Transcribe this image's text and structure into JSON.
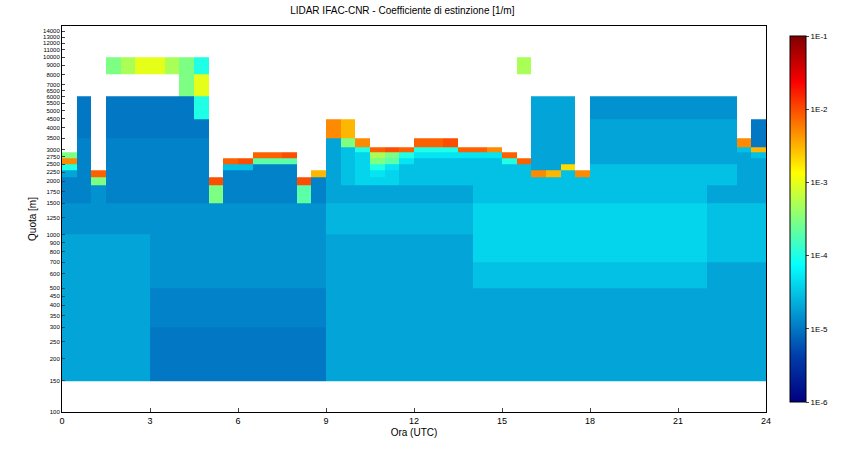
{
  "chart_data": {
    "type": "heatmap",
    "title": "LIDAR IFAC-CNR - Coefficiente di estinzione [1/m]",
    "x_label": "Ora (UTC)",
    "y_label": "Quota [m]",
    "x": [
      0,
      0.5,
      1,
      1.5,
      2,
      2.5,
      3,
      3.5,
      4,
      4.5,
      5,
      5.5,
      6,
      6.5,
      7,
      7.5,
      8,
      8.5,
      9,
      9.5,
      10,
      10.5,
      11,
      11.5,
      12,
      12.5,
      13,
      13.5,
      14,
      14.5,
      15,
      15.5,
      16,
      16.5,
      17,
      17.5,
      18,
      18.5,
      19,
      19.5,
      20,
      20.5,
      21,
      21.5,
      22,
      22.5,
      23,
      23.5,
      24
    ],
    "y": [
      150,
      200,
      300,
      500,
      700,
      1000,
      1500,
      1900,
      2100,
      2300,
      2500,
      2700,
      2900,
      3100,
      3500,
      4500,
      6000,
      8000,
      10000
    ],
    "cells": [
      [
        2e-05,
        2e-05,
        2e-05,
        2e-05,
        2e-05,
        1.5e-05,
        1.2e-05,
        1.2e-05,
        2e-05,
        0.0001,
        0.005,
        0.0003,
        null,
        null,
        null,
        null,
        null,
        null
      ],
      [
        2e-05,
        2e-05,
        2e-05,
        2e-05,
        2e-05,
        1.5e-05,
        1.2e-05,
        1.2e-05,
        1.2e-05,
        1.2e-05,
        1.2e-05,
        1.2e-05,
        1.2e-05,
        1.2e-05,
        1e-05,
        1e-05,
        null,
        null
      ],
      [
        2e-05,
        2e-05,
        2e-05,
        2e-05,
        2e-05,
        1.5e-05,
        1.5e-05,
        0.0003,
        0.008,
        null,
        null,
        null,
        null,
        null,
        null,
        null,
        null,
        null
      ],
      [
        2e-05,
        2e-05,
        2e-05,
        2e-05,
        2e-05,
        1.5e-05,
        1.2e-05,
        1.2e-05,
        1.2e-05,
        1.2e-05,
        1.2e-05,
        1.2e-05,
        1.2e-05,
        1.2e-05,
        1e-05,
        1e-05,
        null,
        0.0003
      ],
      [
        2e-05,
        2e-05,
        2e-05,
        2e-05,
        2e-05,
        1.5e-05,
        1.2e-05,
        1.2e-05,
        1.2e-05,
        1.2e-05,
        1.2e-05,
        1.2e-05,
        1.2e-05,
        1.2e-05,
        1e-05,
        1e-05,
        null,
        0.0005
      ],
      [
        2e-05,
        2e-05,
        2e-05,
        2e-05,
        2e-05,
        1.5e-05,
        1.2e-05,
        1.2e-05,
        1.2e-05,
        1.2e-05,
        1.2e-05,
        1.2e-05,
        1.2e-05,
        1.2e-05,
        1e-05,
        1e-05,
        null,
        0.001
      ],
      [
        1e-05,
        1e-05,
        1.2e-05,
        1.5e-05,
        1.5e-05,
        1.5e-05,
        1.2e-05,
        1.2e-05,
        1.2e-05,
        1.2e-05,
        1.2e-05,
        1.2e-05,
        1.2e-05,
        1.2e-05,
        1e-05,
        1e-05,
        null,
        0.001
      ],
      [
        1e-05,
        1e-05,
        1.2e-05,
        1.5e-05,
        1.5e-05,
        1.5e-05,
        1.2e-05,
        1.2e-05,
        1.2e-05,
        1.2e-05,
        1.2e-05,
        1.2e-05,
        1.2e-05,
        1.2e-05,
        1e-05,
        1e-05,
        null,
        0.0005
      ],
      [
        1e-05,
        1e-05,
        1.2e-05,
        1.5e-05,
        1.5e-05,
        1.5e-05,
        1.2e-05,
        1.2e-05,
        1.2e-05,
        1.2e-05,
        1.2e-05,
        1.2e-05,
        1.2e-05,
        1.2e-05,
        1e-05,
        1e-05,
        0.0003,
        0.0003
      ],
      [
        1e-05,
        1e-05,
        1.2e-05,
        1.5e-05,
        1.5e-05,
        1.5e-05,
        1.2e-05,
        1.2e-05,
        1.2e-05,
        1.2e-05,
        1.2e-05,
        1.2e-05,
        1.2e-05,
        1.2e-05,
        1e-05,
        0.0001,
        0.001,
        0.0001
      ],
      [
        1e-05,
        1e-05,
        1.2e-05,
        1.5e-05,
        1.5e-05,
        1.5e-05,
        0.0003,
        0.01,
        null,
        null,
        null,
        null,
        null,
        null,
        null,
        null,
        null,
        null
      ],
      [
        1e-05,
        1e-05,
        1.2e-05,
        1.5e-05,
        1.5e-05,
        1.5e-05,
        1.2e-05,
        1.2e-05,
        1.2e-05,
        3e-05,
        0.008,
        null,
        null,
        null,
        null,
        null,
        null,
        null
      ],
      [
        1e-05,
        1e-05,
        1.2e-05,
        1.5e-05,
        1.5e-05,
        1.5e-05,
        1.2e-05,
        1.2e-05,
        1.2e-05,
        3e-05,
        0.01,
        null,
        null,
        null,
        null,
        null,
        null,
        null
      ],
      [
        1e-05,
        1e-05,
        1.2e-05,
        1.5e-05,
        1.5e-05,
        1.5e-05,
        1.2e-05,
        1.2e-05,
        1.2e-05,
        1.2e-05,
        0.0002,
        0.008,
        null,
        null,
        null,
        null,
        null,
        null
      ],
      [
        1e-05,
        1e-05,
        1.2e-05,
        1.5e-05,
        1.5e-05,
        1.5e-05,
        1.2e-05,
        1.2e-05,
        1.2e-05,
        1.2e-05,
        0.0002,
        0.008,
        null,
        null,
        null,
        null,
        null,
        null
      ],
      [
        1e-05,
        1e-05,
        1.2e-05,
        1.5e-05,
        1.5e-05,
        1.5e-05,
        1.2e-05,
        1.2e-05,
        1.2e-05,
        1.2e-05,
        0.0002,
        0.01,
        null,
        null,
        null,
        null,
        null,
        null
      ],
      [
        1e-05,
        1e-05,
        1.2e-05,
        1.5e-05,
        1.5e-05,
        1.5e-05,
        0.0002,
        0.01,
        null,
        null,
        null,
        null,
        null,
        null,
        null,
        null,
        null,
        null
      ],
      [
        1e-05,
        1e-05,
        1.2e-05,
        1.5e-05,
        1.5e-05,
        1.5e-05,
        1.2e-05,
        1.2e-05,
        0.003,
        null,
        null,
        null,
        null,
        null,
        null,
        null,
        null,
        null
      ],
      [
        2e-05,
        2e-05,
        2e-05,
        2e-05,
        2e-05,
        2.5e-05,
        2e-05,
        2e-05,
        2e-05,
        2e-05,
        2e-05,
        2e-05,
        2e-05,
        2e-05,
        0.005,
        null,
        null,
        null
      ],
      [
        2e-05,
        2e-05,
        2e-05,
        2e-05,
        2e-05,
        2.5e-05,
        2e-05,
        3e-05,
        3e-05,
        3e-05,
        3e-05,
        3e-05,
        3e-05,
        0.0003,
        0.003,
        null,
        null,
        null
      ],
      [
        2e-05,
        2e-05,
        2e-05,
        2e-05,
        2e-05,
        2.5e-05,
        2e-05,
        4e-05,
        4e-05,
        4e-05,
        4e-05,
        4e-05,
        0.0001,
        0.005,
        null,
        null,
        null,
        null
      ],
      [
        2e-05,
        2e-05,
        2e-05,
        2e-05,
        2e-05,
        2.5e-05,
        2e-05,
        4e-05,
        5e-05,
        0.0001,
        0.0003,
        0.0005,
        0.008,
        null,
        null,
        null,
        null,
        null
      ],
      [
        2e-05,
        2e-05,
        2e-05,
        2e-05,
        2e-05,
        2.5e-05,
        2e-05,
        4e-05,
        4e-05,
        5e-05,
        0.0002,
        0.0003,
        0.01,
        null,
        null,
        null,
        null,
        null
      ],
      [
        2e-05,
        2e-05,
        2e-05,
        2e-05,
        2e-05,
        2.5e-05,
        2e-05,
        3e-05,
        3e-05,
        3e-05,
        5e-05,
        0.0001,
        0.008,
        null,
        null,
        null,
        null,
        null
      ],
      [
        2e-05,
        2e-05,
        2e-05,
        2e-05,
        2e-05,
        2.5e-05,
        2e-05,
        3e-05,
        3e-05,
        3e-05,
        3e-05,
        5e-05,
        0.0001,
        0.008,
        null,
        null,
        null,
        null
      ],
      [
        2e-05,
        2e-05,
        2e-05,
        2e-05,
        2e-05,
        2.5e-05,
        2e-05,
        3e-05,
        3e-05,
        3e-05,
        3e-05,
        5e-05,
        0.0001,
        0.008,
        null,
        null,
        null,
        null
      ],
      [
        2e-05,
        2e-05,
        2e-05,
        2e-05,
        2e-05,
        2.5e-05,
        2e-05,
        3e-05,
        3e-05,
        3e-05,
        3e-05,
        5e-05,
        0.0001,
        0.01,
        null,
        null,
        null,
        null
      ],
      [
        2e-05,
        2e-05,
        2e-05,
        2e-05,
        2e-05,
        2.5e-05,
        2e-05,
        3e-05,
        3e-05,
        3e-05,
        3e-05,
        5e-05,
        0.008,
        null,
        null,
        null,
        null,
        null
      ],
      [
        2e-05,
        2e-05,
        2e-05,
        3e-05,
        4e-05,
        4e-05,
        3e-05,
        3e-05,
        3e-05,
        3e-05,
        3e-05,
        5e-05,
        0.008,
        null,
        null,
        null,
        null,
        null
      ],
      [
        2e-05,
        2e-05,
        2e-05,
        3e-05,
        4e-05,
        4e-05,
        3e-05,
        3e-05,
        3e-05,
        3e-05,
        3e-05,
        5e-05,
        0.005,
        null,
        null,
        null,
        null,
        null
      ],
      [
        2e-05,
        2e-05,
        2e-05,
        3e-05,
        4e-05,
        4e-05,
        3e-05,
        3e-05,
        3e-05,
        3e-05,
        0.0001,
        0.008,
        null,
        null,
        null,
        null,
        null,
        null
      ],
      [
        2e-05,
        2e-05,
        2e-05,
        3e-05,
        4e-05,
        4e-05,
        3e-05,
        3e-05,
        3e-05,
        3e-05,
        0.008,
        null,
        null,
        null,
        null,
        null,
        null,
        0.0005
      ],
      [
        2e-05,
        2e-05,
        2e-05,
        3e-05,
        4e-05,
        4e-05,
        3e-05,
        3e-05,
        0.005,
        2e-05,
        2e-05,
        2e-05,
        2e-05,
        2e-05,
        2e-05,
        2e-05,
        null,
        null
      ],
      [
        2e-05,
        2e-05,
        2e-05,
        3e-05,
        4e-05,
        4e-05,
        3e-05,
        3e-05,
        0.003,
        2e-05,
        2e-05,
        2e-05,
        2e-05,
        2e-05,
        2e-05,
        2e-05,
        null,
        null
      ],
      [
        2e-05,
        2e-05,
        2e-05,
        3e-05,
        4e-05,
        4e-05,
        3e-05,
        3e-05,
        3e-05,
        0.002,
        2e-05,
        2e-05,
        2e-05,
        2e-05,
        2e-05,
        2e-05,
        null,
        null
      ],
      [
        2e-05,
        2e-05,
        2e-05,
        3e-05,
        4e-05,
        4e-05,
        3e-05,
        3e-05,
        0.005,
        null,
        null,
        null,
        null,
        null,
        null,
        null,
        null,
        null
      ],
      [
        2e-05,
        2e-05,
        2e-05,
        3e-05,
        4e-05,
        4e-05,
        3e-05,
        3e-05,
        3e-05,
        3e-05,
        2e-05,
        2e-05,
        2e-05,
        2e-05,
        2e-05,
        1.5e-05,
        null,
        null
      ],
      [
        2e-05,
        2e-05,
        2e-05,
        3e-05,
        4e-05,
        4e-05,
        3e-05,
        3e-05,
        3e-05,
        3e-05,
        2e-05,
        2e-05,
        2e-05,
        2e-05,
        2e-05,
        1.5e-05,
        null,
        null
      ],
      [
        2e-05,
        2e-05,
        2e-05,
        3e-05,
        4e-05,
        4e-05,
        3e-05,
        3e-05,
        3e-05,
        3e-05,
        2e-05,
        2e-05,
        2e-05,
        2e-05,
        2e-05,
        1.5e-05,
        null,
        null
      ],
      [
        2e-05,
        2e-05,
        2e-05,
        3e-05,
        4e-05,
        4e-05,
        3e-05,
        3e-05,
        3e-05,
        3e-05,
        2e-05,
        2e-05,
        2e-05,
        2e-05,
        2e-05,
        1.5e-05,
        null,
        null
      ],
      [
        2e-05,
        2e-05,
        2e-05,
        3e-05,
        4e-05,
        4e-05,
        3e-05,
        3e-05,
        3e-05,
        3e-05,
        2e-05,
        2e-05,
        2e-05,
        2e-05,
        2e-05,
        1.5e-05,
        null,
        null
      ],
      [
        2e-05,
        2e-05,
        2e-05,
        3e-05,
        4e-05,
        4e-05,
        3e-05,
        3e-05,
        3e-05,
        3e-05,
        2e-05,
        2e-05,
        2e-05,
        2e-05,
        2e-05,
        1.5e-05,
        null,
        null
      ],
      [
        2e-05,
        2e-05,
        2e-05,
        3e-05,
        4e-05,
        4e-05,
        3e-05,
        3e-05,
        3e-05,
        3e-05,
        2e-05,
        2e-05,
        2e-05,
        2e-05,
        2e-05,
        1.5e-05,
        null,
        null
      ],
      [
        2e-05,
        2e-05,
        2e-05,
        3e-05,
        4e-05,
        4e-05,
        3e-05,
        3e-05,
        3e-05,
        3e-05,
        2e-05,
        2e-05,
        2e-05,
        2e-05,
        2e-05,
        1.5e-05,
        null,
        null
      ],
      [
        2e-05,
        2e-05,
        2e-05,
        2e-05,
        3e-05,
        3e-05,
        2e-05,
        3e-05,
        3e-05,
        3e-05,
        2e-05,
        2e-05,
        2e-05,
        2e-05,
        2e-05,
        1.5e-05,
        null,
        null
      ],
      [
        2e-05,
        2e-05,
        2e-05,
        2e-05,
        3e-05,
        3e-05,
        2e-05,
        3e-05,
        3e-05,
        3e-05,
        2e-05,
        2e-05,
        2e-05,
        2e-05,
        2e-05,
        1.5e-05,
        null,
        null
      ],
      [
        2e-05,
        2e-05,
        2e-05,
        2e-05,
        3e-05,
        3e-05,
        2e-05,
        2e-05,
        2e-05,
        2e-05,
        2e-05,
        2e-05,
        3e-05,
        0.005,
        null,
        null,
        null,
        null
      ],
      [
        2e-05,
        2e-05,
        2e-05,
        2e-05,
        3e-05,
        3e-05,
        2e-05,
        2e-05,
        2e-05,
        2e-05,
        2e-05,
        3e-05,
        0.003,
        1e-05,
        1e-05,
        null,
        null,
        null
      ]
    ],
    "xlim": [
      0,
      24
    ],
    "xticks": [
      0,
      3,
      6,
      9,
      12,
      15,
      18,
      21,
      24
    ],
    "ylim": [
      100,
      15000
    ],
    "yticks": [
      100,
      150,
      200,
      250,
      300,
      350,
      400,
      450,
      500,
      600,
      700,
      800,
      900,
      1000,
      1250,
      1500,
      1750,
      2000,
      2250,
      2500,
      2750,
      3000,
      3500,
      4000,
      4500,
      5000,
      5500,
      6000,
      6500,
      7000,
      8000,
      9000,
      10000,
      11000,
      12000,
      13000,
      14000
    ],
    "log": "y",
    "grid": false,
    "color": "Jet",
    "zlim": [
      1e-06,
      0.1
    ],
    "zticks": [
      {
        "value": 1e-06,
        "label": "1E-6"
      },
      {
        "value": 1e-05,
        "label": "1E-5"
      },
      {
        "value": 0.0001,
        "label": "1E-4"
      },
      {
        "value": 0.001,
        "label": "1E-3"
      },
      {
        "value": 0.01,
        "label": "1E-2"
      },
      {
        "value": 0.1,
        "label": "1E-1"
      }
    ]
  }
}
